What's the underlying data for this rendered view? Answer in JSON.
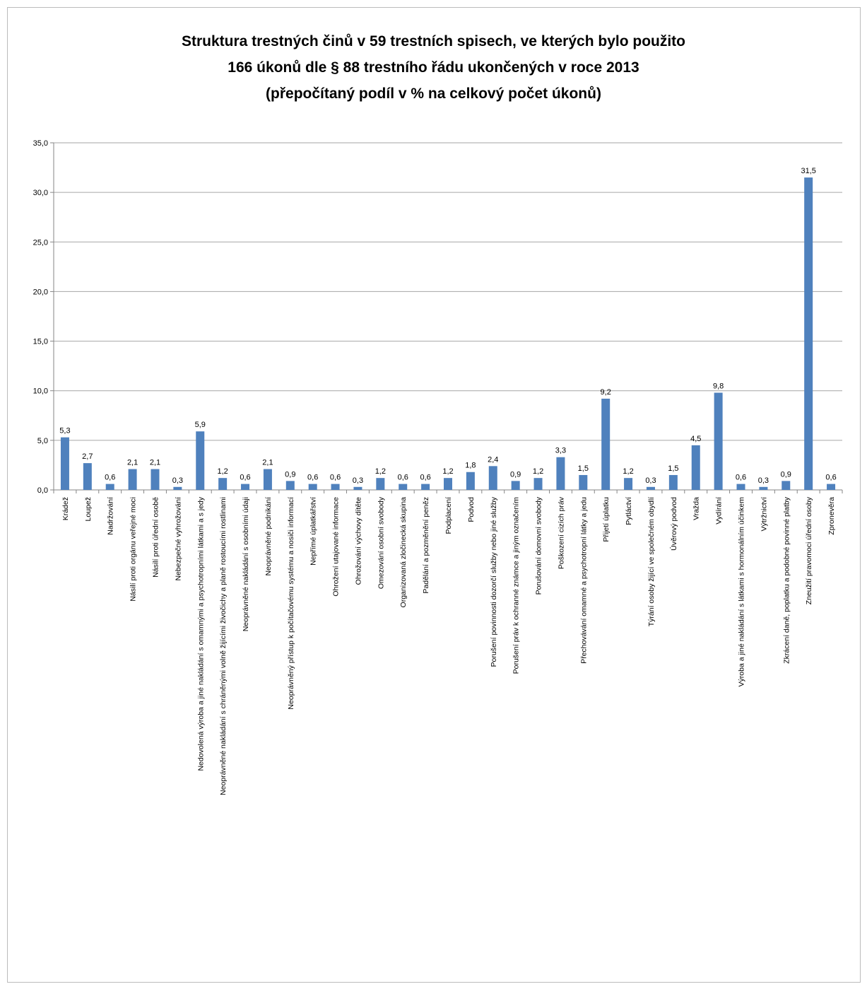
{
  "chart_data": {
    "type": "bar",
    "title_lines": [
      "Struktura trestných činů v 59 trestních spisech, ve kterých bylo použito",
      "166 úkonů dle § 88 trestního řádu ukončených v roce 2013",
      "(přepočítaný podíl v % na celkový počet úkonů)"
    ],
    "xlabel": "",
    "ylabel": "",
    "ylim": [
      0,
      35
    ],
    "yticks": [
      "0,0",
      "5,0",
      "10,0",
      "15,0",
      "20,0",
      "25,0",
      "30,0",
      "35,0"
    ],
    "grid": true,
    "bar_color": "#4f81bd",
    "categories": [
      "Krádež",
      "Loupež",
      "Nadržování",
      "Násilí proti orgánu veřejné moci",
      "Násilí proti úřední osobě",
      "Nebezpečné vyhrožování",
      "Nedovolená výroba a jiné nakládání s omamnými a psychotropními látkami a s jedy",
      "Neoprávněné nakládání s chráněnými volně žijícími živočichy a planě rostoucími rostlinami",
      "Neoprávněné nakládání s osobními údaji",
      "Neoprávněné podnikání",
      "Neoprávněný přístup k počítačovému systému a nosiči informací",
      "Nepřímé úplatkářství",
      "Ohrožení utajované informace",
      "Ohrožování výchovy dítěte",
      "Omezování osobní svobody",
      "Organizovaná zločinecká skupina",
      "Padělání a pozměnění peněz",
      "Podplacení",
      "Podvod",
      "Porušení povinnosti dozorčí služby nebo jiné služby",
      "Porušení práv k ochranné známce a jiným označením",
      "Porušování domovní svobody",
      "Poškození cizích práv",
      "Přechovávání omamné a psychotropní látky a jedu",
      "Přijetí úplatku",
      "Pytláctví",
      "Týrání osoby žijící ve společném obydlí",
      "Úvěrový podvod",
      "Vražda",
      "Vydírání",
      "Výroba a jiné nakládání s látkami s hormonálním účinkem",
      "Výtržnictví",
      "Zkrácení daně, poplatku a podobné povinné platby",
      "Zneužití pravomoci úřední osoby",
      "Zpronevěra"
    ],
    "values": [
      5.3,
      2.7,
      0.6,
      2.1,
      2.1,
      0.3,
      5.9,
      1.2,
      0.6,
      2.1,
      0.9,
      0.6,
      0.6,
      0.3,
      1.2,
      0.6,
      0.6,
      1.2,
      1.8,
      2.4,
      0.9,
      1.2,
      3.3,
      1.5,
      9.2,
      1.2,
      0.3,
      1.5,
      4.5,
      9.8,
      0.6,
      0.3,
      0.9,
      31.5,
      0.6
    ],
    "value_labels": [
      "5,3",
      "2,7",
      "0,6",
      "2,1",
      "2,1",
      "0,3",
      "5,9",
      "1,2",
      "0,6",
      "2,1",
      "0,9",
      "0,6",
      "0,6",
      "0,3",
      "1,2",
      "0,6",
      "0,6",
      "1,2",
      "1,8",
      "2,4",
      "0,9",
      "1,2",
      "3,3",
      "1,5",
      "9,2",
      "1,2",
      "0,3",
      "1,5",
      "4,5",
      "9,8",
      "0,6",
      "0,3",
      "0,9",
      "31,5",
      "0,6"
    ]
  }
}
